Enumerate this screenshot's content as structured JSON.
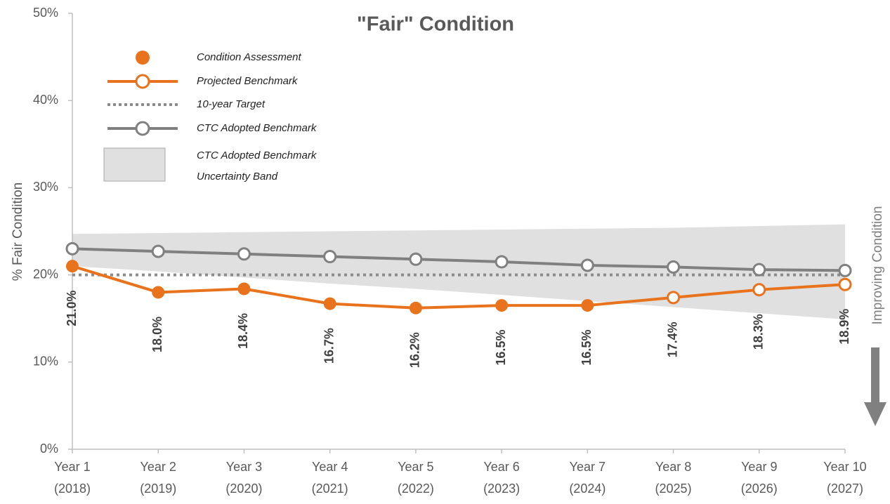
{
  "chart_data": {
    "type": "line",
    "title": "\"Fair\" Condition",
    "y_label": "% Fair Condition",
    "annotation": "Improving Condition",
    "categories": [
      [
        "Year 1",
        "(2018)"
      ],
      [
        "Year 2",
        "(2019)"
      ],
      [
        "Year 3",
        "(2020)"
      ],
      [
        "Year 4",
        "(2021)"
      ],
      [
        "Year 5",
        "(2022)"
      ],
      [
        "Year 6",
        "(2023)"
      ],
      [
        "Year 7",
        "(2024)"
      ],
      [
        "Year 8",
        "(2025)"
      ],
      [
        "Year 9",
        "(2026)"
      ],
      [
        "Year 10",
        "(2027)"
      ]
    ],
    "ylim": [
      0,
      50
    ],
    "yticks": [
      {
        "value": 0,
        "label": "0%"
      },
      {
        "value": 10,
        "label": "10%"
      },
      {
        "value": 20,
        "label": "20%"
      },
      {
        "value": 30,
        "label": "30%"
      },
      {
        "value": 40,
        "label": "40%"
      },
      {
        "value": 50,
        "label": "50%"
      }
    ],
    "band": {
      "name": "CTC Adopted Benchmark Uncertainty Band",
      "color": "#e0e0e0",
      "upper": [
        24.7,
        24.8,
        24.9,
        25.0,
        25.1,
        25.2,
        25.3,
        25.4,
        25.6,
        25.8
      ],
      "lower": [
        21.0,
        20.4,
        19.7,
        19.0,
        18.4,
        17.7,
        17.0,
        16.3,
        15.6,
        14.9
      ]
    },
    "series": [
      {
        "name": "Condition Assessment",
        "color": "#e8731c",
        "marker": "filled",
        "values": [
          21.0,
          18.0,
          18.4,
          16.7,
          16.2,
          16.5,
          16.5,
          null,
          null,
          null
        ],
        "value_labels": [
          "21.0%",
          "18.0%",
          "18.4%",
          "16.7%",
          "16.2%",
          "16.5%",
          "16.5%",
          null,
          null,
          null
        ]
      },
      {
        "name": "Projected Benchmark",
        "color": "#e8731c",
        "marker": "hollow",
        "values": [
          null,
          null,
          null,
          null,
          null,
          null,
          null,
          17.4,
          18.3,
          18.9
        ],
        "value_labels": [
          null,
          null,
          null,
          null,
          null,
          null,
          null,
          "17.4%",
          "18.3%",
          "18.9%"
        ]
      },
      {
        "name": "10-year Target",
        "color": "#8c8c8c",
        "marker": "none",
        "dash": true,
        "values": [
          20,
          20,
          20,
          20,
          20,
          20,
          20,
          20,
          20,
          20
        ]
      },
      {
        "name": "CTC Adopted Benchmark",
        "color": "#808080",
        "marker": "hollow",
        "values": [
          23.0,
          22.7,
          22.4,
          22.1,
          21.8,
          21.5,
          21.1,
          20.9,
          20.6,
          20.5
        ]
      }
    ]
  }
}
